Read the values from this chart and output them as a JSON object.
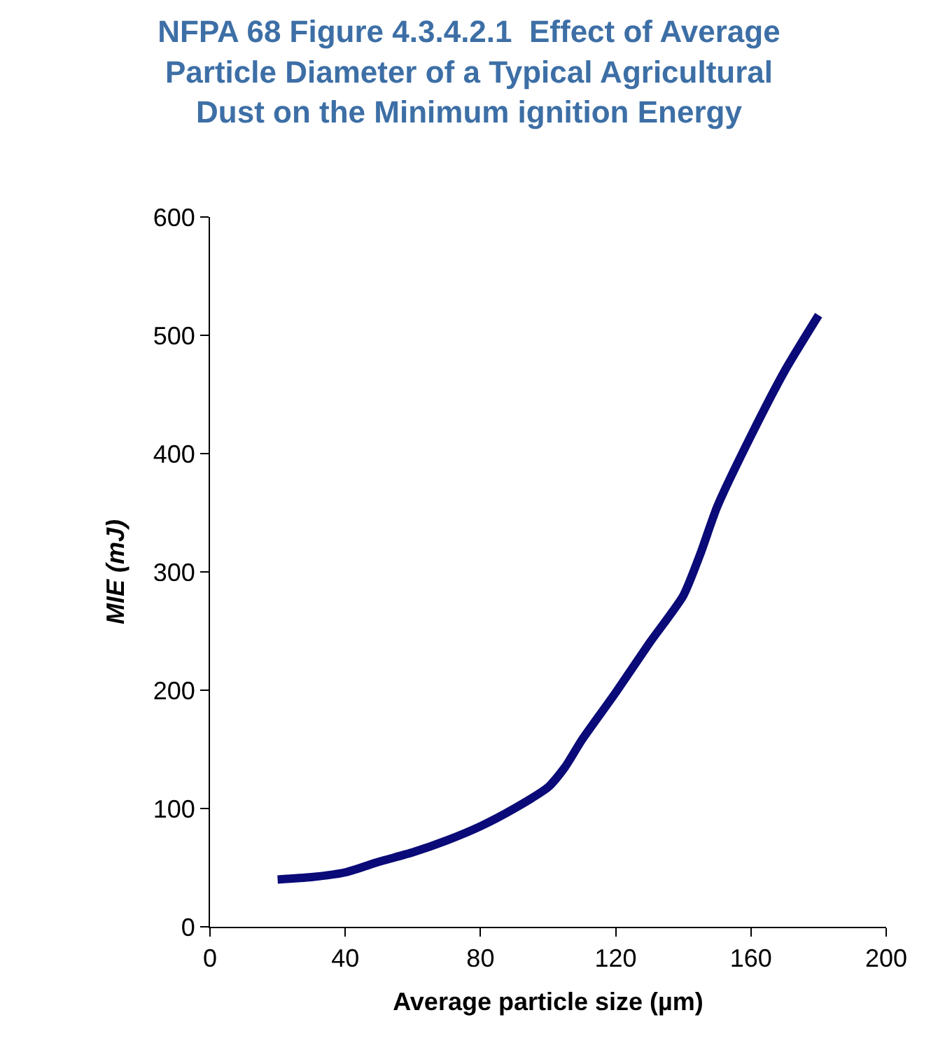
{
  "chart_data": {
    "type": "line",
    "title": "NFPA 68 Figure 4.3.4.2.1  Effect of Average Particle Diameter of a Typical Agricultural Dust on the Minimum ignition Energy",
    "xlabel": "Average particle size (µm)",
    "ylabel": "MIE (mJ)",
    "x": [
      20,
      30,
      40,
      50,
      60,
      70,
      80,
      90,
      100,
      105,
      110,
      120,
      130,
      140,
      145,
      150,
      160,
      170,
      180
    ],
    "series": [
      {
        "color": "#0a0a78",
        "values": [
          40,
          42,
          46,
          55,
          63,
          73,
          85,
          100,
          118,
          135,
          158,
          198,
          240,
          280,
          315,
          355,
          415,
          470,
          517
        ]
      }
    ],
    "xlim": [
      0,
      200
    ],
    "xticks": [
      0,
      40,
      80,
      120,
      160,
      200
    ],
    "ylim": [
      0,
      600
    ],
    "yticks": [
      0,
      100,
      200,
      300,
      400,
      500,
      600
    ],
    "marker": "none",
    "line_style": "solid"
  }
}
